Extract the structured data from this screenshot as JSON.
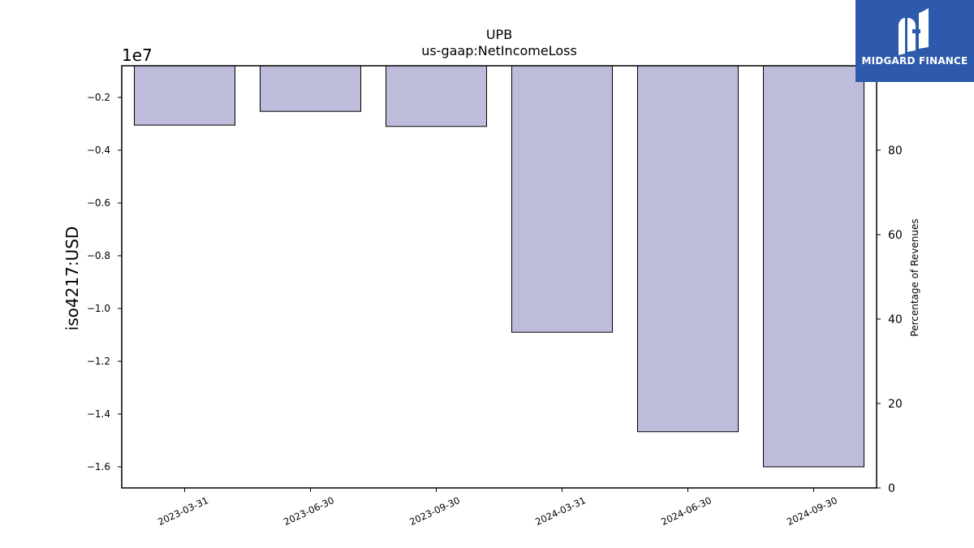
{
  "chart_data": {
    "type": "bar",
    "title": "UPB",
    "subtitle": "us-gaap:NetIncomeLoss",
    "categories": [
      "2023-03-31",
      "2023-06-30",
      "2023-09-30",
      "2024-03-31",
      "2024-06-30",
      "2024-09-30"
    ],
    "values": [
      -3050000,
      -2530000,
      -3100000,
      -10900000,
      -14670000,
      -16000000
    ],
    "ylabel": "iso4217:USD",
    "y_offset_label": "1e7",
    "ylim": [
      -1.68,
      -0.08
    ],
    "y_ticks": [
      -0.2,
      -0.4,
      -0.6,
      -0.8,
      -1.0,
      -1.2,
      -1.4,
      -1.6
    ],
    "y_tick_labels": [
      "−0.2",
      "−0.4",
      "−0.6",
      "−0.8",
      "−1.0",
      "−1.2",
      "−1.4",
      "−1.6"
    ],
    "y2label": "Percentage of Revenues",
    "y2lim": [
      0,
      100
    ],
    "y2_ticks": [
      0,
      20,
      40,
      60,
      80
    ],
    "y2_tick_labels": [
      "0",
      "20",
      "40",
      "60",
      "80"
    ],
    "bar_color": "#bebcdb",
    "bar_edge_color": "#000000",
    "grid": false,
    "legend": "none"
  },
  "watermark": {
    "brand": "MIDGARD FINANCE",
    "background": "#2d5aab"
  }
}
